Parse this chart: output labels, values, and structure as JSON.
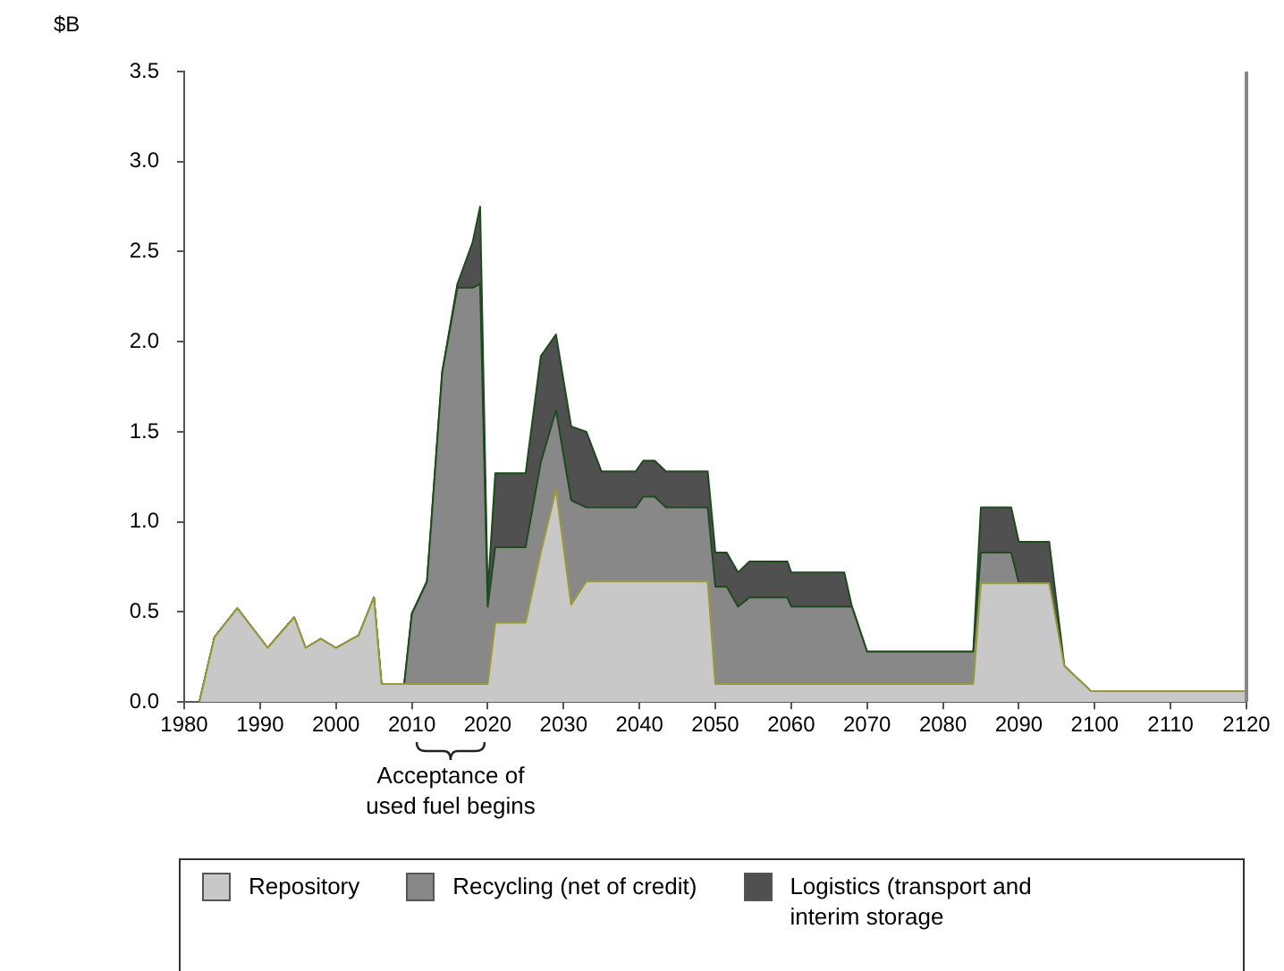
{
  "chart_data": {
    "type": "area",
    "stacked": true,
    "ylabel": "$B",
    "legend": "bottom",
    "marker": "none",
    "grid": false,
    "x": [
      1982,
      1984,
      1987,
      1991,
      1994.5,
      1996,
      1998,
      2000,
      2003,
      2005,
      2006,
      2009,
      2010,
      2012,
      2014,
      2016,
      2018,
      2019,
      2020,
      2021,
      2025,
      2027,
      2029,
      2031,
      2033,
      2035,
      2039.5,
      2040.5,
      2042,
      2043.5,
      2049,
      2050,
      2051.5,
      2053,
      2054.5,
      2059.5,
      2060,
      2067,
      2068,
      2070,
      2084,
      2085,
      2089,
      2090,
      2094,
      2096,
      2099.5,
      2120
    ],
    "series": [
      {
        "name": "Repository",
        "color": "#c8c8c8",
        "values": [
          0,
          0.36,
          0.52,
          0.3,
          0.47,
          0.3,
          0.35,
          0.3,
          0.37,
          0.58,
          0.1,
          0.1,
          0.1,
          0.1,
          0.1,
          0.1,
          0.1,
          0.1,
          0.1,
          0.44,
          0.44,
          0.83,
          1.18,
          0.54,
          0.67,
          0.67,
          0.67,
          0.67,
          0.67,
          0.67,
          0.67,
          0.1,
          0.1,
          0.1,
          0.1,
          0.1,
          0.1,
          0.1,
          0.1,
          0.1,
          0.1,
          0.66,
          0.66,
          0.66,
          0.66,
          0.2,
          0.06,
          0.06
        ]
      },
      {
        "name": "Recycling (net of credit)",
        "color": "#888888",
        "values": [
          0,
          0,
          0,
          0,
          0,
          0,
          0,
          0,
          0,
          0,
          0,
          0,
          0.39,
          0.57,
          1.73,
          2.2,
          2.2,
          2.22,
          0.43,
          0.42,
          0.42,
          0.5,
          0.44,
          0.58,
          0.41,
          0.41,
          0.41,
          0.47,
          0.47,
          0.41,
          0.41,
          0.54,
          0.54,
          0.43,
          0.48,
          0.48,
          0.43,
          0.43,
          0.43,
          0.18,
          0.18,
          0.17,
          0.17,
          0,
          0,
          0,
          0,
          0
        ]
      },
      {
        "name": "Logistics (transport and interim storage",
        "color": "#505050",
        "values": [
          0,
          0,
          0,
          0,
          0,
          0,
          0,
          0,
          0,
          0,
          0,
          0,
          0,
          0,
          0,
          0.02,
          0.25,
          0.43,
          0.07,
          0.41,
          0.41,
          0.59,
          0.42,
          0.41,
          0.42,
          0.2,
          0.2,
          0.2,
          0.2,
          0.2,
          0.2,
          0.19,
          0.19,
          0.19,
          0.2,
          0.2,
          0.19,
          0.19,
          0,
          0,
          0,
          0.25,
          0.25,
          0.23,
          0.23,
          0,
          0,
          0
        ]
      }
    ],
    "xlim": [
      1980,
      2120
    ],
    "xticks": [
      1980,
      1990,
      2000,
      2010,
      2020,
      2030,
      2040,
      2050,
      2060,
      2070,
      2080,
      2090,
      2100,
      2110,
      2120
    ],
    "ylim": [
      0,
      3.5
    ],
    "yticks": [
      {
        "value": 0,
        "label": "0.0"
      },
      0.5,
      {
        "value": 1,
        "label": "1.0"
      },
      1.5,
      {
        "value": 2,
        "label": "2.0"
      },
      2.5,
      {
        "value": 3,
        "label": "3.0"
      },
      3.5
    ],
    "annotations": [
      "Acceptance of used fuel begins"
    ]
  }
}
